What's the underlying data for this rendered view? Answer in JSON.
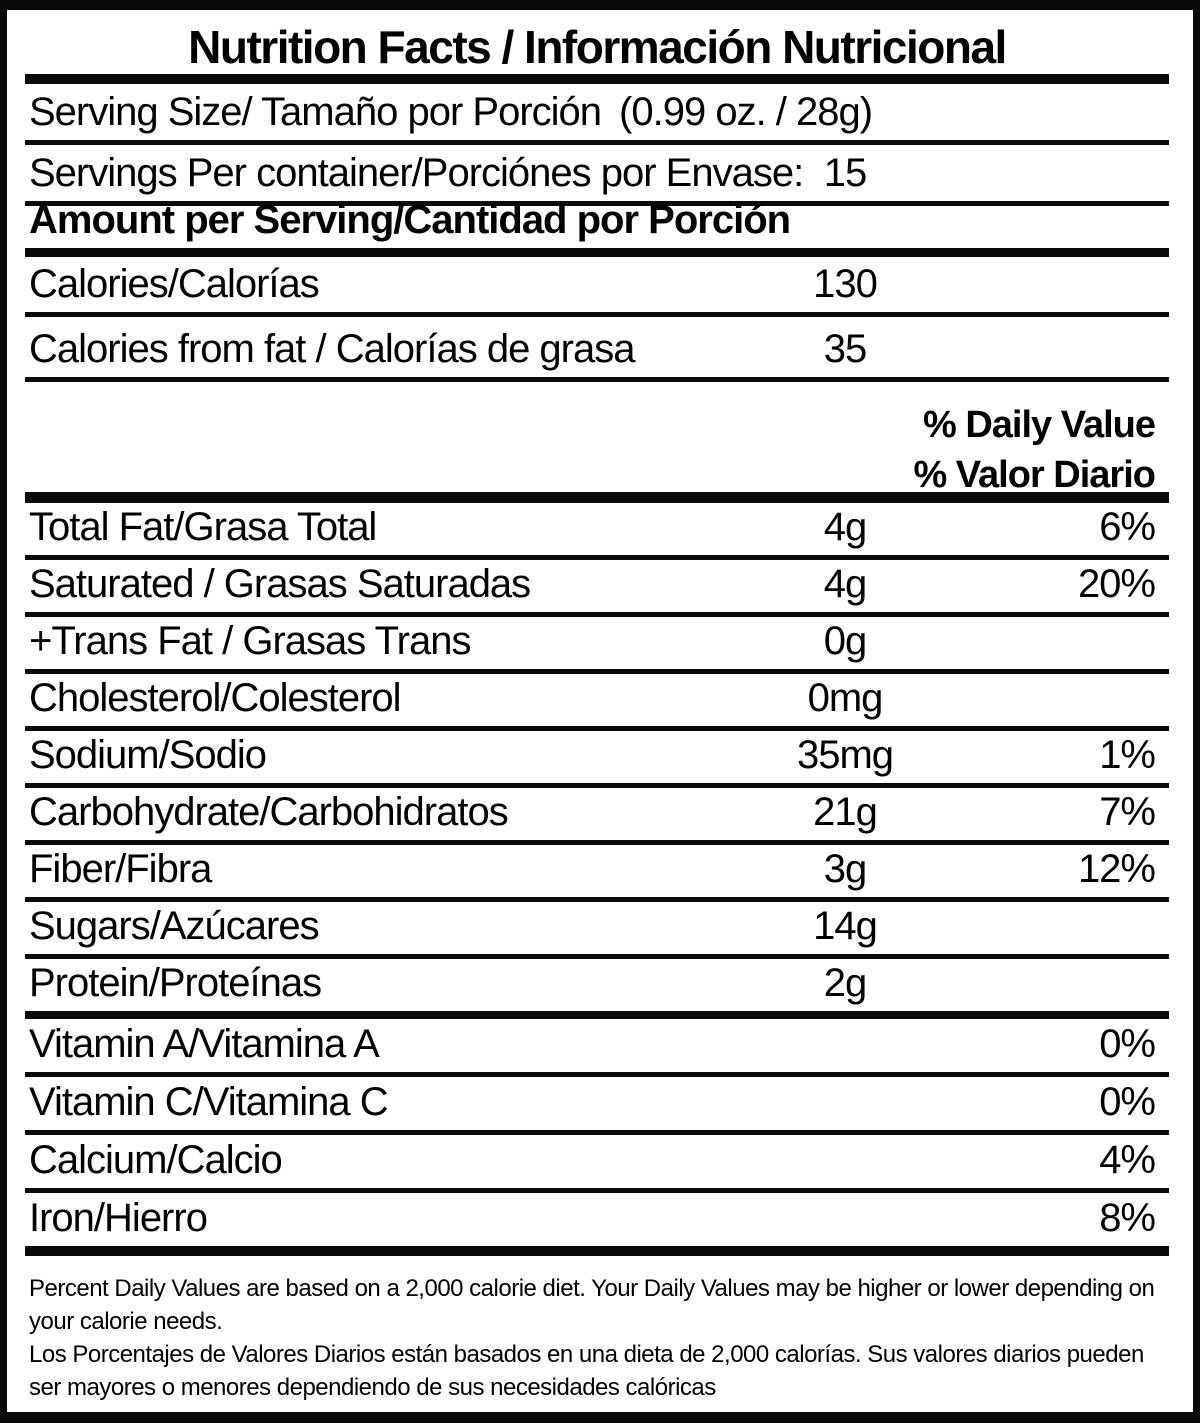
{
  "title": "Nutrition Facts / Información Nutricional",
  "serving": {
    "size_label": "Serving Size/ Tamaño por Porción",
    "size_value": "(0.99 oz. / 28g)",
    "per_container_label": "Servings Per container/Porciónes por Envase:",
    "per_container_value": "15"
  },
  "amount_header": "Amount per Serving/Cantidad por Porción",
  "calories": {
    "label": "Calories/Calorías",
    "value": "130"
  },
  "calories_fat": {
    "label": "Calories from fat / Calorías de grasa",
    "value": "35"
  },
  "dv_header": {
    "line1": "% Daily Value",
    "line2": "% Valor Diario"
  },
  "nutrients": [
    {
      "label": "Total Fat/Grasa Total",
      "value": "4g",
      "pct": "6%"
    },
    {
      "label": "Saturated / Grasas Saturadas",
      "value": "4g",
      "pct": "20%"
    },
    {
      "label": "+Trans Fat / Grasas Trans",
      "value": "0g",
      "pct": ""
    },
    {
      "label": "Cholesterol/Colesterol",
      "value": "0mg",
      "pct": ""
    },
    {
      "label": "Sodium/Sodio",
      "value": "35mg",
      "pct": "1%"
    },
    {
      "label": "Carbohydrate/Carbohidratos",
      "value": "21g",
      "pct": "7%"
    },
    {
      "label": "Fiber/Fibra",
      "value": "3g",
      "pct": "12%"
    },
    {
      "label": "Sugars/Azúcares",
      "value": "14g",
      "pct": ""
    },
    {
      "label": "Protein/Proteínas",
      "value": "2g",
      "pct": ""
    }
  ],
  "vitamins": [
    {
      "label": "Vitamin A/Vitamina A",
      "pct": "0%"
    },
    {
      "label": "Vitamin C/Vitamina C",
      "pct": "0%"
    },
    {
      "label": "Calcium/Calcio",
      "pct": "4%"
    },
    {
      "label": "Iron/Hierro",
      "pct": "8%"
    }
  ],
  "footnote": {
    "en": "Percent Daily Values are based on a 2,000 calorie diet. Your Daily Values may be higher or lower depending on your calorie needs.",
    "es": "Los Porcentajes de Valores Diarios están basados en una dieta de 2,000 calorías. Sus valores diarios pueden ser mayores o menores dependiendo de sus necesidades calóricas"
  }
}
